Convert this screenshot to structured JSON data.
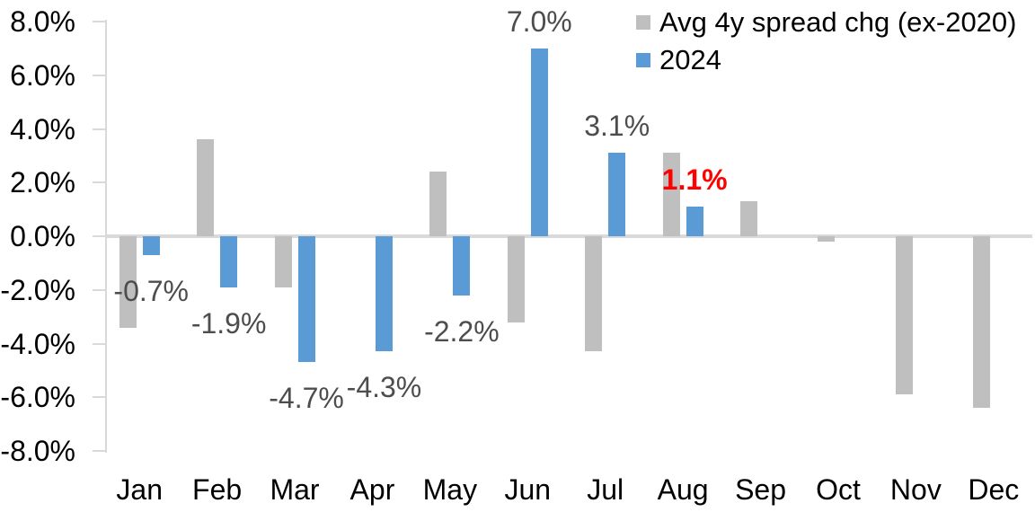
{
  "chart_data": {
    "type": "bar",
    "title": "",
    "xlabel": "",
    "ylabel": "",
    "categories": [
      "Jan",
      "Feb",
      "Mar",
      "Apr",
      "May",
      "Jun",
      "Jul",
      "Aug",
      "Sep",
      "Oct",
      "Nov",
      "Dec"
    ],
    "series": [
      {
        "name": "Avg 4y spread chg (ex-2020)",
        "color": "#bfbfbf",
        "values": [
          -3.4,
          3.6,
          -1.9,
          0.0,
          2.4,
          -3.2,
          -4.3,
          3.1,
          1.3,
          -0.2,
          -5.9,
          -6.4
        ]
      },
      {
        "name": "2024",
        "color": "#5b9bd5",
        "values": [
          -0.7,
          -1.9,
          -4.7,
          -4.3,
          -2.2,
          7.0,
          3.1,
          1.1,
          null,
          null,
          null,
          null
        ],
        "data_labels": [
          {
            "text": "-0.7%",
            "color": "#4d4d4d",
            "bold": false
          },
          {
            "text": "-1.9%",
            "color": "#4d4d4d",
            "bold": false
          },
          {
            "text": "-4.7%",
            "color": "#4d4d4d",
            "bold": false
          },
          {
            "text": "-4.3%",
            "color": "#4d4d4d",
            "bold": false
          },
          {
            "text": "-2.2%",
            "color": "#4d4d4d",
            "bold": false
          },
          {
            "text": "7.0%",
            "color": "#4d4d4d",
            "bold": false
          },
          {
            "text": "3.1%",
            "color": "#4d4d4d",
            "bold": false
          },
          {
            "text": "1.1%",
            "color": "#ff0000",
            "bold": true
          },
          null,
          null,
          null,
          null
        ]
      }
    ],
    "ylim": [
      -8,
      8
    ],
    "ytick_step": 2,
    "ytick_labels": [
      "8.0%",
      "6.0%",
      "4.0%",
      "2.0%",
      "0.0%",
      "-2.0%",
      "-4.0%",
      "-6.0%",
      "-8.0%"
    ],
    "grid": "zero-line-only",
    "legend_position": "top-right",
    "axis_color": "#d9d9d9",
    "background_color": "#ffffff"
  },
  "legend": {
    "items": [
      {
        "label": "Avg 4y spread chg (ex-2020)",
        "color": "#bfbfbf"
      },
      {
        "label": "2024",
        "color": "#5b9bd5"
      }
    ]
  }
}
